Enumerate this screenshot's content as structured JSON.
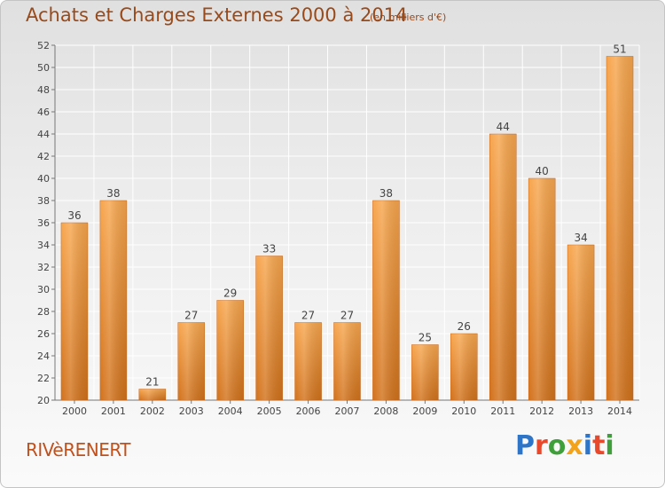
{
  "header": {
    "title": "Achats et Charges Externes 2000 à 2014",
    "subtitle": "(en milliers d'€)"
  },
  "footer": {
    "commune": "RIVèRENERT",
    "logo": {
      "text": "Proxiti",
      "letters": [
        {
          "char": "P",
          "color": "#2e75c7"
        },
        {
          "char": "r",
          "color": "#e8492c"
        },
        {
          "char": "o",
          "color": "#3f9f3a"
        },
        {
          "char": "x",
          "color": "#f2a21b"
        },
        {
          "char": "i",
          "color": "#2e75c7"
        },
        {
          "char": "t",
          "color": "#e8492c"
        },
        {
          "char": "i",
          "color": "#3f9f3a"
        }
      ]
    }
  },
  "colors": {
    "bar_top": "#f7a64d",
    "bar_bottom": "#d2721b",
    "text": "#444444",
    "grid": "#ffffff"
  },
  "chart_data": {
    "type": "bar",
    "title": "Achats et Charges Externes 2000 à 2014",
    "subtitle": "(en milliers d'€)",
    "xlabel": "",
    "ylabel": "",
    "categories": [
      "2000",
      "2001",
      "2002",
      "2003",
      "2004",
      "2005",
      "2006",
      "2007",
      "2008",
      "2009",
      "2010",
      "2011",
      "2012",
      "2013",
      "2014"
    ],
    "values": [
      36,
      38,
      21,
      27,
      29,
      33,
      27,
      27,
      38,
      25,
      26,
      44,
      40,
      34,
      51
    ],
    "ylim": [
      20,
      52
    ],
    "yticks": [
      20,
      22,
      24,
      26,
      28,
      30,
      32,
      34,
      36,
      38,
      40,
      42,
      44,
      46,
      48,
      50,
      52
    ],
    "grid": true,
    "data_labels": true
  }
}
